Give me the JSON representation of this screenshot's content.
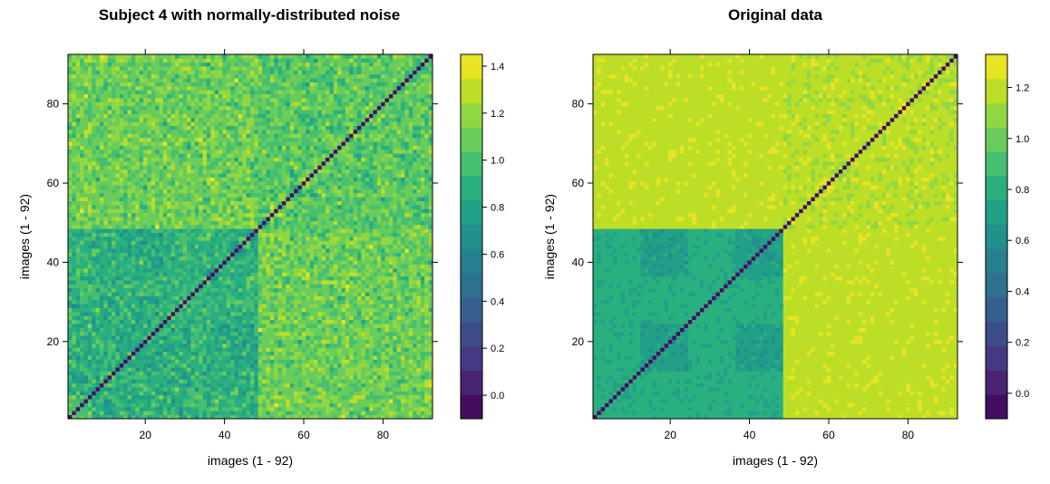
{
  "chart_data": [
    {
      "type": "heatmap",
      "title": "Subject 4 with normally-distributed noise",
      "xlabel": "images (1 - 92)",
      "ylabel": "images (1 - 92)",
      "n": 92,
      "x_ticks": [
        20,
        40,
        60,
        80
      ],
      "y_ticks": [
        20,
        40,
        60,
        80
      ],
      "colorbar": {
        "min": -0.1,
        "max": 1.45,
        "bins": 15,
        "ticks": [
          0.0,
          0.2,
          0.4,
          0.6,
          0.8,
          1.0,
          1.2,
          1.4
        ]
      },
      "structure": {
        "split": 48,
        "diagonal_value": -0.1,
        "top_left_mean": 1.05,
        "bottom_right_mean": 1.1,
        "off_diagonal_mean": 0.9,
        "sub_blocks": [
          [
            13,
            24
          ],
          [
            37,
            48
          ]
        ],
        "sub_block_mean": 0.85,
        "noise_sd": 0.1
      }
    },
    {
      "type": "heatmap",
      "title": "Original data",
      "xlabel": "images (1 - 92)",
      "ylabel": "images (1 - 92)",
      "n": 92,
      "x_ticks": [
        20,
        40,
        60,
        80
      ],
      "y_ticks": [
        20,
        40,
        60,
        80
      ],
      "colorbar": {
        "min": -0.1,
        "max": 1.33,
        "bins": 15,
        "ticks": [
          0.0,
          0.2,
          0.4,
          0.6,
          0.8,
          1.0,
          1.2
        ]
      },
      "structure": {
        "split": 48,
        "diagonal_value": -0.1,
        "top_left_mean": 1.2,
        "bottom_right_mean": 1.22,
        "off_diagonal_mean": 0.8,
        "sub_blocks": [
          [
            13,
            24
          ],
          [
            37,
            48
          ]
        ],
        "sub_block_mean": 0.72,
        "noise_sd": 0.0
      }
    }
  ],
  "viridis_stops": [
    "#440154",
    "#482173",
    "#433e85",
    "#38598c",
    "#2d708e",
    "#25858e",
    "#1e9b8a",
    "#2ab07f",
    "#52c569",
    "#86d549",
    "#c2df23",
    "#fde725"
  ]
}
